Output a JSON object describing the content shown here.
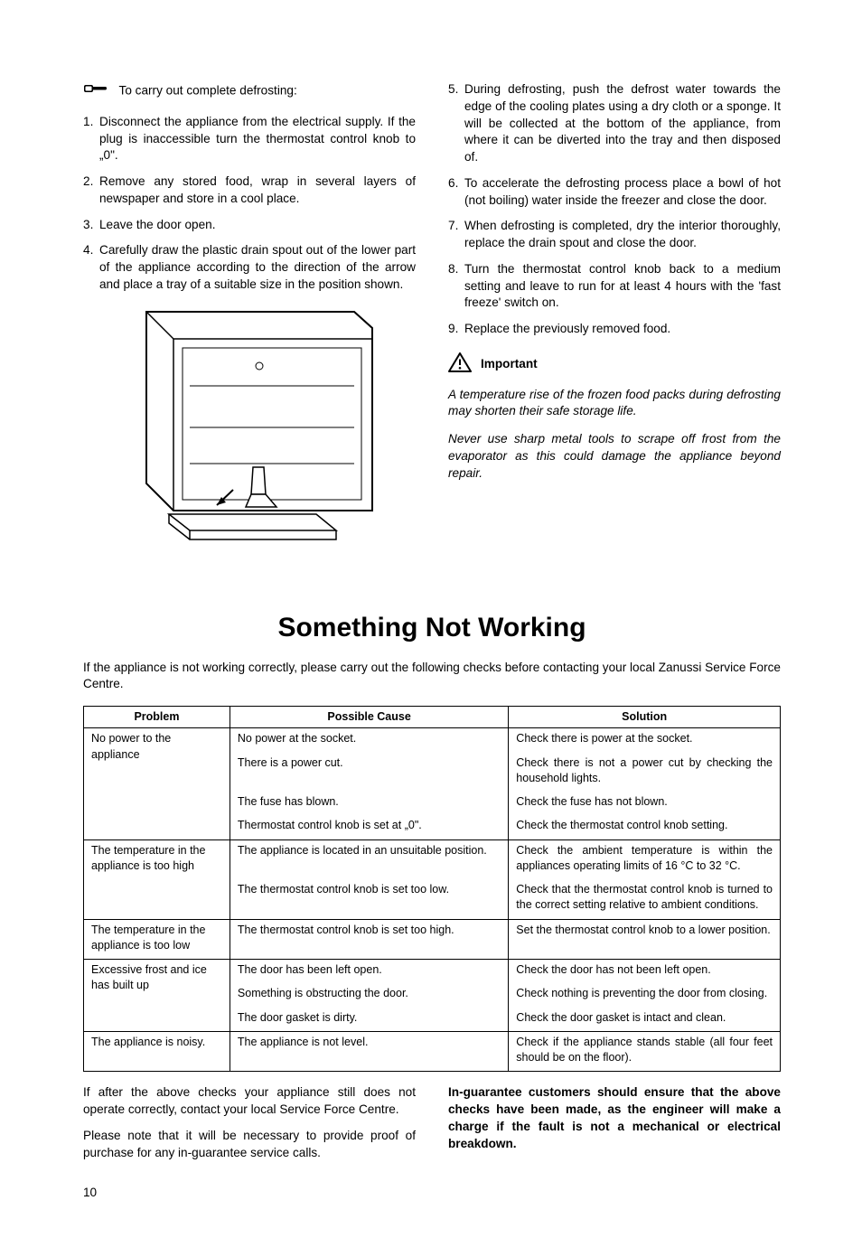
{
  "left_intro": "To carry out complete defrosting:",
  "steps_left": [
    "Disconnect the appliance from the electrical supply. If the plug is inaccessible turn the thermostat control knob to „0\".",
    "Remove any stored food, wrap in several layers of newspaper and store in a cool place.",
    "Leave the door open.",
    "Carefully draw the plastic drain spout out of the lower part of the appliance according to the direction of the arrow and place a tray of a suitable size in the position shown."
  ],
  "steps_right": [
    "During defrosting, push the defrost water towards the edge of the cooling plates using a dry cloth or a sponge. It will be collected at the bottom of the appliance, from where it can be diverted into the tray and then disposed of.",
    "To accelerate the defrosting process place a bowl of hot (not boiling) water inside the freezer and close the door.",
    "When defrosting is completed, dry the interior thoroughly, replace the drain spout and close the door.",
    "Turn the thermostat control knob back to a medium setting and leave to run for at least 4 hours with the 'fast freeze' switch on.",
    "Replace the previously removed food."
  ],
  "important_label": "Important",
  "important_paras": [
    "A temperature rise of the frozen food packs during defrosting may shorten their safe storage life.",
    "Never use sharp metal tools to scrape off frost from the evaporator as this could damage the appliance beyond repair."
  ],
  "section_title": "Something Not Working",
  "section_intro": "If the appliance is not working correctly, please carry out the following checks before contacting your local Zanussi Service Force Centre.",
  "table": {
    "headers": [
      "Problem",
      "Possible Cause",
      "Solution"
    ],
    "col_widths": [
      "21%",
      "40%",
      "39%"
    ],
    "rows": [
      {
        "problem": "No power to the appliance",
        "problem_rowspan": 4,
        "cause": "No power at the socket.",
        "solution": "Check there is power at the socket.",
        "sol_just": false,
        "group_end": false
      },
      {
        "cause": "There is a power cut.",
        "solution": "Check there is not a power cut by checking the household lights.",
        "sol_just": true,
        "group_end": false
      },
      {
        "cause": "The fuse has blown.",
        "solution": "Check the fuse has not blown.",
        "sol_just": false,
        "group_end": false
      },
      {
        "cause": "Thermostat control knob is set at „0\".",
        "solution": "Check the thermostat control knob setting.",
        "sol_just": false,
        "group_end": true
      },
      {
        "problem": "The temperature in the appliance is too high",
        "problem_rowspan": 2,
        "cause": "The appliance is located in an unsuitable position.",
        "solution": "Check the ambient temperature is within the appliances operating limits of 16 °C to 32 °C.",
        "sol_just": true,
        "group_end": false
      },
      {
        "cause": "The thermostat control knob is set too low.",
        "solution": "Check that the thermostat control knob is turned to the correct setting relative to ambient conditions.",
        "sol_just": true,
        "group_end": true
      },
      {
        "problem": "The temperature in the appliance is too low",
        "problem_rowspan": 1,
        "cause": "The thermostat control knob is set too high.",
        "solution": "Set the thermostat control knob to a lower position.",
        "sol_just": true,
        "group_end": true
      },
      {
        "problem": "Excessive frost and ice has built up",
        "problem_rowspan": 3,
        "cause": "The door has been left open.",
        "solution": "Check the door has not been left open.",
        "sol_just": false,
        "group_end": false
      },
      {
        "cause": "Something is obstructing the door.",
        "solution": "Check nothing is preventing the door from closing.",
        "sol_just": false,
        "group_end": false
      },
      {
        "cause": "The door gasket is dirty.",
        "solution": "Check the door gasket is intact and clean.",
        "sol_just": false,
        "group_end": true
      },
      {
        "problem": "The appliance is noisy.",
        "problem_rowspan": 1,
        "cause": "The appliance is not level.",
        "solution": "Check if the appliance stands stable (all four feet should be on the floor).",
        "sol_just": true,
        "group_end": true
      }
    ]
  },
  "footer_left": [
    " If after the above checks your appliance still does not operate correctly, contact your local Service Force Centre.",
    "Please note that it will be necessary to provide proof of purchase for any in-guarantee service calls."
  ],
  "footer_right_bold": "In-guarantee customers should ensure that the above checks have been made, as the engineer will make a charge if the fault is not a mechanical or electrical breakdown.",
  "page_number": "10"
}
